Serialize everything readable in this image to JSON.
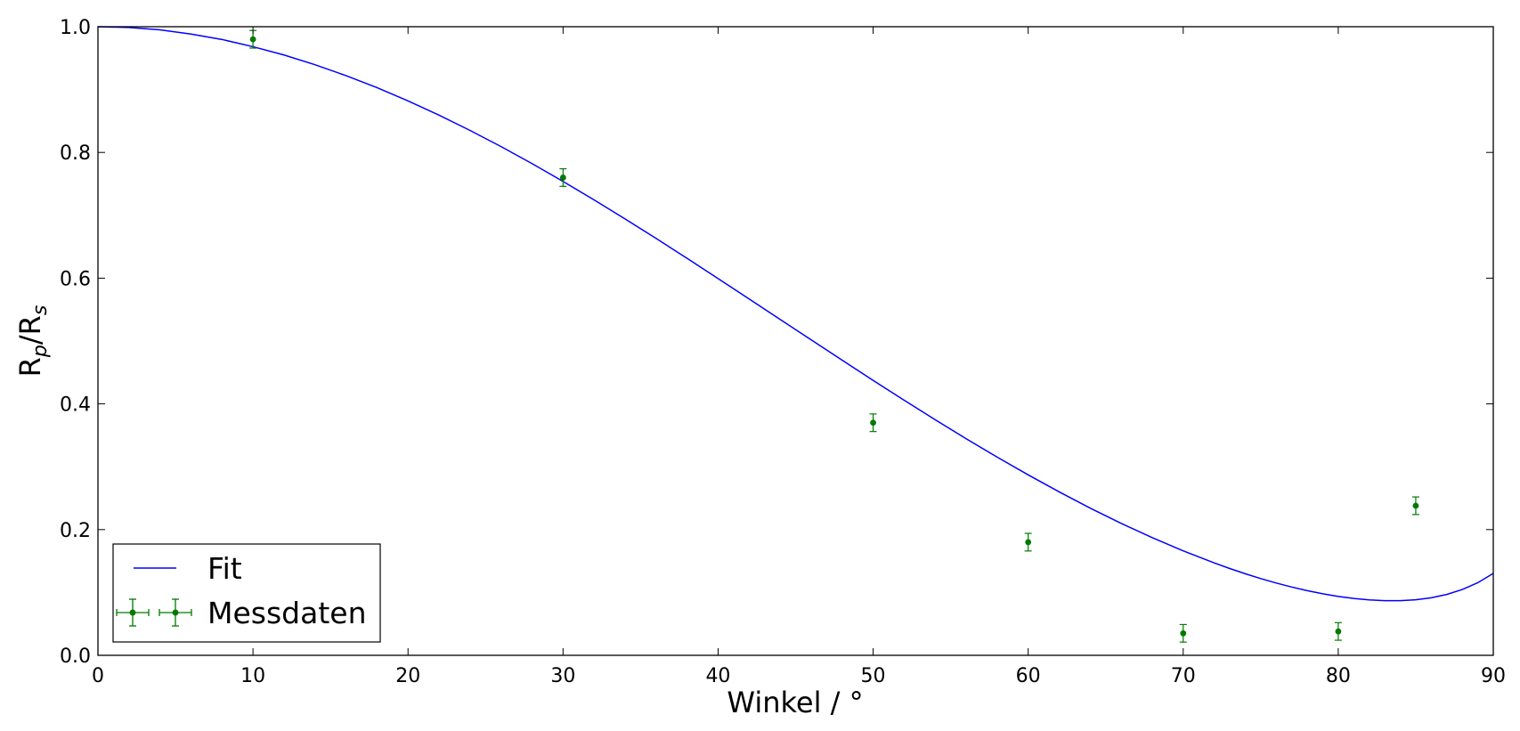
{
  "chart_data": {
    "type": "scatter",
    "xlabel": "Winkel / °",
    "ylabel": "Rp/Rs",
    "ylabel_main_1": "R",
    "ylabel_sub_1": "p",
    "ylabel_mid": "/R",
    "ylabel_sub_2": "s",
    "xlim": [
      0,
      90
    ],
    "ylim": [
      0,
      1.0
    ],
    "grid": false,
    "legend_position": "lower-left",
    "x_ticks": [
      "0",
      "10",
      "20",
      "30",
      "40",
      "50",
      "60",
      "70",
      "80",
      "90"
    ],
    "y_ticks": [
      "0.0",
      "0.2",
      "0.4",
      "0.6",
      "0.8",
      "1.0"
    ],
    "series": [
      {
        "name": "Fit",
        "kind": "line",
        "color": "#0000ff",
        "x": [
          0,
          2,
          4,
          6,
          8,
          10,
          12,
          14,
          16,
          18,
          20,
          22,
          24,
          26,
          28,
          30,
          32,
          34,
          36,
          38,
          40,
          42,
          44,
          46,
          48,
          50,
          52,
          54,
          56,
          58,
          60,
          62,
          64,
          66,
          68,
          70,
          72,
          73,
          74,
          75,
          76,
          77,
          78,
          79,
          80,
          81,
          82,
          83,
          84,
          85,
          86,
          87,
          88,
          89,
          90
        ],
        "y": [
          1.0,
          0.9988,
          0.995,
          0.9883,
          0.9797,
          0.9682,
          0.955,
          0.9395,
          0.9222,
          0.903,
          0.882,
          0.8593,
          0.835,
          0.8093,
          0.7822,
          0.7539,
          0.7245,
          0.6942,
          0.6632,
          0.6315,
          0.5994,
          0.5669,
          0.5344,
          0.5019,
          0.4695,
          0.4374,
          0.4058,
          0.3748,
          0.3446,
          0.3153,
          0.2871,
          0.26,
          0.2342,
          0.2099,
          0.1872,
          0.1661,
          0.147,
          0.1381,
          0.1298,
          0.1221,
          0.115,
          0.1086,
          0.1029,
          0.0979,
          0.0937,
          0.0904,
          0.0881,
          0.0869,
          0.0869,
          0.0884,
          0.0916,
          0.0969,
          0.1047,
          0.1155,
          0.1303
        ]
      },
      {
        "name": "Messdaten",
        "kind": "errorbar",
        "color": "#007a00",
        "x": [
          10,
          30,
          50,
          60,
          70,
          80,
          85
        ],
        "y": [
          0.98,
          0.76,
          0.37,
          0.18,
          0.035,
          0.038,
          0.238
        ],
        "yerr": [
          0.014,
          0.014,
          0.014,
          0.014,
          0.014,
          0.014,
          0.014
        ]
      }
    ]
  },
  "legend": {
    "fit_label": "Fit",
    "data_label": "Messdaten"
  },
  "colors": {
    "fit": "#0000ff",
    "data": "#007a00",
    "axes": "#000000"
  }
}
